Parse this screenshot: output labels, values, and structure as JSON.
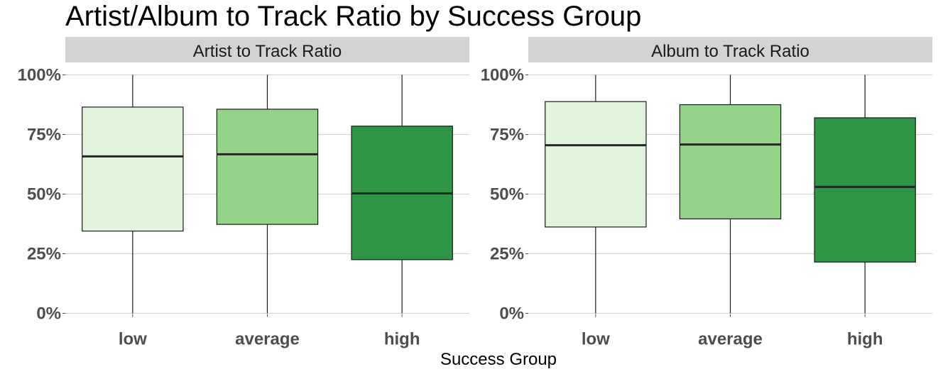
{
  "chart_data": {
    "type": "boxplot",
    "title": "Artist/Album to Track Ratio by Success Group",
    "xlabel": "Success Group",
    "ylabel": "",
    "categories": [
      "low",
      "average",
      "high"
    ],
    "ylim": [
      0,
      1
    ],
    "yticks": [
      0,
      0.25,
      0.5,
      0.75,
      1.0
    ],
    "ytick_labels": [
      "0%",
      "25%",
      "50%",
      "75%",
      "100%"
    ],
    "grid": true,
    "legend": "none",
    "colors": {
      "low": "#e0f3db",
      "average": "#94d489",
      "high": "#2d9645",
      "strip_bg": "#d3d3d3",
      "grid": "#d3d3d3",
      "box_border": "#1a1a1a",
      "median": "#262626"
    },
    "panels": [
      {
        "label": "Artist to Track Ratio",
        "boxes": [
          {
            "category": "low",
            "min": 0.0,
            "q1": 0.345,
            "median": 0.658,
            "q3": 0.865,
            "max": 1.0
          },
          {
            "category": "average",
            "min": 0.0,
            "q1": 0.373,
            "median": 0.667,
            "q3": 0.856,
            "max": 1.0
          },
          {
            "category": "high",
            "min": 0.0,
            "q1": 0.225,
            "median": 0.503,
            "q3": 0.785,
            "max": 1.0
          }
        ]
      },
      {
        "label": "Album to Track Ratio",
        "boxes": [
          {
            "category": "low",
            "min": 0.0,
            "q1": 0.362,
            "median": 0.705,
            "q3": 0.888,
            "max": 1.0
          },
          {
            "category": "average",
            "min": 0.0,
            "q1": 0.396,
            "median": 0.708,
            "q3": 0.875,
            "max": 1.0
          },
          {
            "category": "high",
            "min": 0.0,
            "q1": 0.215,
            "median": 0.53,
            "q3": 0.82,
            "max": 1.0
          }
        ]
      }
    ]
  }
}
